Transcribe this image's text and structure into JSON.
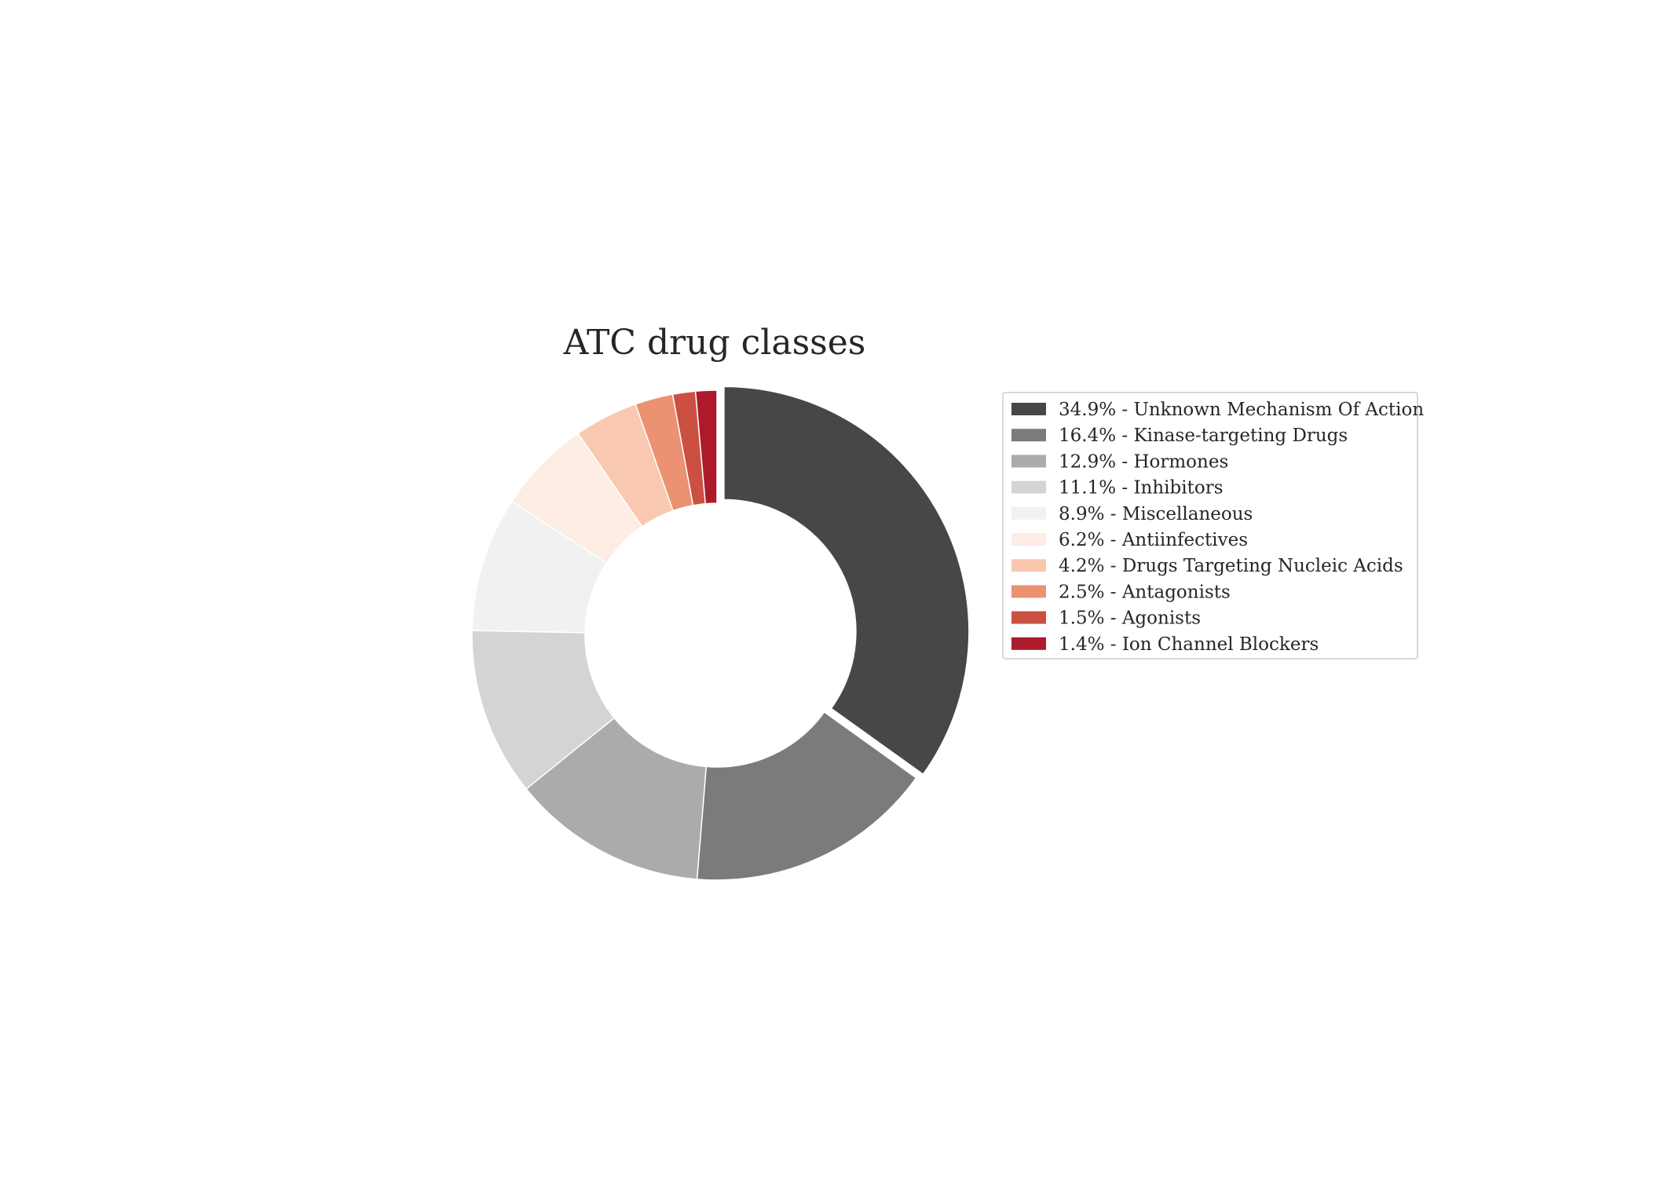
{
  "chart_data": {
    "type": "pie",
    "title": "ATC drug classes",
    "donut": true,
    "exploded_first_slice": true,
    "start_angle_deg": 90,
    "direction": "clockwise",
    "legend_position": "right",
    "slices": [
      {
        "percent": 34.9,
        "name": "Unknown Mechanism Of Action",
        "label": "34.9% - Unknown Mechanism Of Action",
        "color": "#474747"
      },
      {
        "percent": 16.4,
        "name": "Kinase-targeting Drugs",
        "label": "16.4% - Kinase-targeting Drugs",
        "color": "#7b7b7b"
      },
      {
        "percent": 12.9,
        "name": "Hormones",
        "label": "12.9% - Hormones",
        "color": "#ababab"
      },
      {
        "percent": 11.1,
        "name": "Inhibitors",
        "label": "11.1% - Inhibitors",
        "color": "#d4d4d4"
      },
      {
        "percent": 8.9,
        "name": "Miscellaneous",
        "label": "8.9% - Miscellaneous",
        "color": "#f1f1f1"
      },
      {
        "percent": 6.2,
        "name": "Antiinfectives",
        "label": "6.2% - Antiinfectives",
        "color": "#fdede4"
      },
      {
        "percent": 4.2,
        "name": "Drugs Targeting Nucleic Acids",
        "label": "4.2% - Drugs Targeting Nucleic Acids",
        "color": "#f9c8b1"
      },
      {
        "percent": 2.5,
        "name": "Antagonists",
        "label": "2.5% - Antagonists",
        "color": "#ec9172"
      },
      {
        "percent": 1.5,
        "name": "Agonists",
        "label": "1.5% - Agonists",
        "color": "#cc5042"
      },
      {
        "percent": 1.4,
        "name": "Ion Channel Blockers",
        "label": "1.4% - Ion Channel Blockers",
        "color": "#ad1a2c"
      }
    ]
  }
}
